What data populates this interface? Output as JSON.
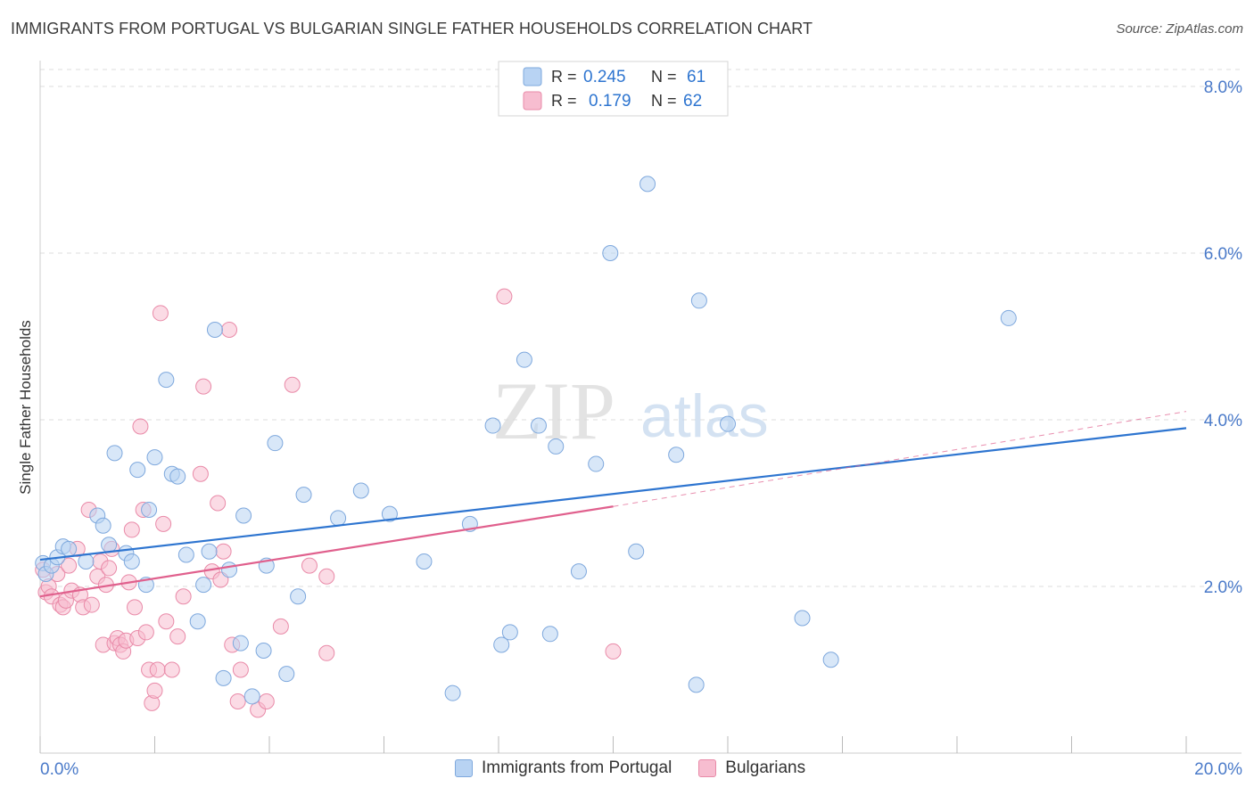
{
  "title": "IMMIGRANTS FROM PORTUGAL VS BULGARIAN SINGLE FATHER HOUSEHOLDS CORRELATION CHART",
  "source": "Source: ZipAtlas.com",
  "watermark": {
    "zip": "ZIP",
    "atlas": "atlas"
  },
  "colors": {
    "blue_fill": "#b8d3f3",
    "blue_stroke": "#7ea8dd",
    "blue_line": "#2e75d0",
    "pink_fill": "#f7bdd0",
    "pink_stroke": "#e98aa8",
    "pink_line": "#e0608d",
    "axis_text": "#4a7ac9",
    "grid": "#dddddd"
  },
  "legend_top": {
    "rows": [
      {
        "r_label": "R =",
        "r_value": "0.245",
        "n_label": "N =",
        "n_value": "61"
      },
      {
        "r_label": "R =",
        "r_value": "0.179",
        "n_label": "N =",
        "n_value": "62"
      }
    ]
  },
  "legend_bottom": [
    "Immigrants from Portugal",
    "Bulgarians"
  ],
  "chart_data": {
    "type": "scatter",
    "ylabel": "Single Father Households",
    "xlim": [
      0,
      20
    ],
    "ylim": [
      0,
      8
    ],
    "x_tick_labels": [
      "0.0%",
      "20.0%"
    ],
    "y_ticks": [
      2,
      4,
      6,
      8
    ],
    "y_tick_labels": [
      "2.0%",
      "4.0%",
      "6.0%",
      "8.0%"
    ],
    "grid": true,
    "series": [
      {
        "name": "Immigrants from Portugal",
        "color": "blue",
        "R": 0.245,
        "N": 61,
        "trend": {
          "x0": 0,
          "y0": 2.32,
          "x1": 20,
          "y1": 3.9
        },
        "points": [
          [
            0.05,
            2.28
          ],
          [
            0.1,
            2.15
          ],
          [
            0.2,
            2.25
          ],
          [
            0.3,
            2.35
          ],
          [
            0.4,
            2.48
          ],
          [
            0.5,
            2.45
          ],
          [
            0.8,
            2.3
          ],
          [
            1.0,
            2.85
          ],
          [
            1.1,
            2.73
          ],
          [
            1.2,
            2.5
          ],
          [
            1.3,
            3.6
          ],
          [
            1.5,
            2.4
          ],
          [
            1.6,
            2.3
          ],
          [
            1.7,
            3.4
          ],
          [
            1.85,
            2.02
          ],
          [
            1.9,
            2.92
          ],
          [
            2.0,
            3.55
          ],
          [
            2.2,
            4.48
          ],
          [
            2.3,
            3.35
          ],
          [
            2.4,
            3.32
          ],
          [
            2.55,
            2.38
          ],
          [
            2.75,
            1.58
          ],
          [
            2.85,
            2.02
          ],
          [
            2.95,
            2.42
          ],
          [
            3.05,
            5.08
          ],
          [
            3.2,
            0.9
          ],
          [
            3.3,
            2.2
          ],
          [
            3.5,
            1.32
          ],
          [
            3.55,
            2.85
          ],
          [
            3.7,
            0.68
          ],
          [
            3.9,
            1.23
          ],
          [
            3.95,
            2.25
          ],
          [
            4.1,
            3.72
          ],
          [
            4.3,
            0.95
          ],
          [
            4.5,
            1.88
          ],
          [
            4.6,
            3.1
          ],
          [
            5.2,
            2.82
          ],
          [
            5.6,
            3.15
          ],
          [
            6.1,
            2.87
          ],
          [
            6.7,
            2.3
          ],
          [
            7.2,
            0.72
          ],
          [
            7.5,
            2.75
          ],
          [
            7.9,
            3.93
          ],
          [
            8.05,
            1.3
          ],
          [
            8.2,
            1.45
          ],
          [
            8.45,
            4.72
          ],
          [
            8.7,
            3.93
          ],
          [
            8.9,
            1.43
          ],
          [
            9.0,
            3.68
          ],
          [
            9.4,
            2.18
          ],
          [
            9.7,
            3.47
          ],
          [
            9.95,
            6.0
          ],
          [
            10.4,
            2.42
          ],
          [
            10.6,
            6.83
          ],
          [
            11.1,
            3.58
          ],
          [
            11.45,
            0.82
          ],
          [
            11.5,
            5.43
          ],
          [
            12.0,
            3.95
          ],
          [
            13.3,
            1.62
          ],
          [
            13.8,
            1.12
          ],
          [
            16.9,
            5.22
          ]
        ]
      },
      {
        "name": "Bulgarians",
        "color": "pink",
        "R": 0.179,
        "N": 62,
        "trend": {
          "x0": 0,
          "y0": 1.88,
          "x1": 10,
          "y1": 2.96
        },
        "trend_dashed": {
          "x0": 10,
          "y0": 2.96,
          "x1": 20,
          "y1": 4.1
        },
        "points": [
          [
            0.05,
            2.2
          ],
          [
            0.1,
            1.93
          ],
          [
            0.15,
            2.0
          ],
          [
            0.2,
            1.88
          ],
          [
            0.3,
            2.15
          ],
          [
            0.35,
            1.78
          ],
          [
            0.4,
            1.75
          ],
          [
            0.45,
            1.83
          ],
          [
            0.5,
            2.25
          ],
          [
            0.55,
            1.95
          ],
          [
            0.65,
            2.45
          ],
          [
            0.7,
            1.9
          ],
          [
            0.75,
            1.75
          ],
          [
            0.85,
            2.92
          ],
          [
            0.9,
            1.78
          ],
          [
            1.0,
            2.12
          ],
          [
            1.05,
            2.3
          ],
          [
            1.1,
            1.3
          ],
          [
            1.15,
            2.02
          ],
          [
            1.2,
            2.22
          ],
          [
            1.25,
            2.45
          ],
          [
            1.3,
            1.32
          ],
          [
            1.35,
            1.38
          ],
          [
            1.4,
            1.3
          ],
          [
            1.45,
            1.22
          ],
          [
            1.5,
            1.35
          ],
          [
            1.55,
            2.05
          ],
          [
            1.6,
            2.68
          ],
          [
            1.65,
            1.75
          ],
          [
            1.7,
            1.38
          ],
          [
            1.75,
            3.92
          ],
          [
            1.8,
            2.92
          ],
          [
            1.85,
            1.45
          ],
          [
            1.9,
            1.0
          ],
          [
            1.95,
            0.6
          ],
          [
            2.0,
            0.75
          ],
          [
            2.05,
            1.0
          ],
          [
            2.1,
            5.28
          ],
          [
            2.15,
            2.75
          ],
          [
            2.2,
            1.58
          ],
          [
            2.3,
            1.0
          ],
          [
            2.4,
            1.4
          ],
          [
            2.5,
            1.88
          ],
          [
            2.8,
            3.35
          ],
          [
            2.85,
            4.4
          ],
          [
            3.0,
            2.18
          ],
          [
            3.1,
            3.0
          ],
          [
            3.15,
            2.08
          ],
          [
            3.2,
            2.42
          ],
          [
            3.3,
            5.08
          ],
          [
            3.35,
            1.3
          ],
          [
            3.45,
            0.62
          ],
          [
            3.5,
            1.0
          ],
          [
            3.8,
            0.52
          ],
          [
            3.95,
            0.62
          ],
          [
            4.4,
            4.42
          ],
          [
            4.2,
            1.52
          ],
          [
            4.7,
            2.25
          ],
          [
            5.0,
            1.2
          ],
          [
            5.0,
            2.12
          ],
          [
            8.1,
            5.48
          ],
          [
            10.0,
            1.22
          ]
        ]
      }
    ]
  }
}
